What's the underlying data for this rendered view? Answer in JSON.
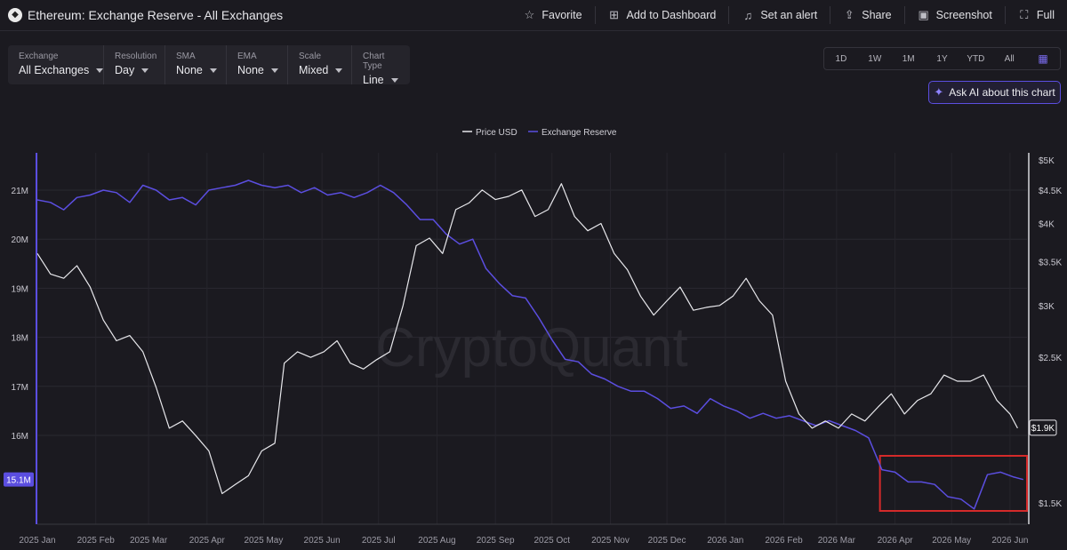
{
  "header": {
    "title": "Ethereum: Exchange Reserve - All Exchanges",
    "logo_icon": "ethereum-logo-icon",
    "actions": [
      {
        "label": "Favorite",
        "icon": "star-icon"
      },
      {
        "label": "Add to Dashboard",
        "icon": "add-dashboard-icon"
      },
      {
        "label": "Set an alert",
        "icon": "bell-icon"
      },
      {
        "label": "Share",
        "icon": "share-icon"
      },
      {
        "label": "Screenshot",
        "icon": "camera-icon"
      },
      {
        "label": "Full",
        "icon": "fullscreen-icon"
      }
    ]
  },
  "controls": [
    {
      "label": "Exchange",
      "value": "All Exchanges"
    },
    {
      "label": "Resolution",
      "value": "Day"
    },
    {
      "label": "SMA",
      "value": "None"
    },
    {
      "label": "EMA",
      "value": "None"
    },
    {
      "label": "Scale",
      "value": "Mixed"
    },
    {
      "label": "Chart Type",
      "value": "Line"
    }
  ],
  "ranges": [
    "1D",
    "1W",
    "1M",
    "1Y",
    "YTD",
    "All"
  ],
  "calendar_icon": "calendar-icon",
  "ask_ai": {
    "label": "Ask AI about this chart",
    "icon": "sparkle-icon"
  },
  "watermark": "CryptoQuant",
  "colors": {
    "background": "#1b1a20",
    "price": "#e8e8ec",
    "reserve": "#5b4ee0",
    "highlight_box": "#d42a2a"
  },
  "chart_data": {
    "type": "line",
    "legend": [
      "Price USD",
      "Exchange Reserve"
    ],
    "legend_position": "top-center",
    "x_ticks": [
      "2025 Jan",
      "2025 Feb",
      "2025 Mar",
      "2025 Apr",
      "2025 May",
      "2025 Jun",
      "2025 Jul",
      "2025 Aug",
      "2025 Sep",
      "2025 Oct",
      "2025 Nov",
      "2025 Dec",
      "2026 Jan",
      "2026 Feb",
      "2026 Mar",
      "2026 Apr",
      "2026 May",
      "2026 Jun"
    ],
    "left_axis": {
      "label": "Exchange Reserve",
      "ticks": [
        "21M",
        "20M",
        "19M",
        "18M",
        "17M",
        "16M"
      ],
      "current_value_label": "15.1M"
    },
    "right_axis": {
      "label": "Price USD",
      "scale": "log",
      "ticks": [
        "$5K",
        "$4.5K",
        "$4K",
        "$3.5K",
        "$3K",
        "$2.5K",
        "$1.5K"
      ],
      "current_value_label": "$1.9K"
    },
    "grid": true,
    "series": [
      {
        "name": "Price USD",
        "points": [
          [
            "2025-01-01",
            3600
          ],
          [
            "2025-01-08",
            3350
          ],
          [
            "2025-01-15",
            3300
          ],
          [
            "2025-01-22",
            3450
          ],
          [
            "2025-01-29",
            3200
          ],
          [
            "2025-02-05",
            2850
          ],
          [
            "2025-02-12",
            2650
          ],
          [
            "2025-02-19",
            2700
          ],
          [
            "2025-02-26",
            2550
          ],
          [
            "2025-03-05",
            2250
          ],
          [
            "2025-03-12",
            1950
          ],
          [
            "2025-03-19",
            2000
          ],
          [
            "2025-03-26",
            1900
          ],
          [
            "2025-04-02",
            1800
          ],
          [
            "2025-04-09",
            1550
          ],
          [
            "2025-04-16",
            1600
          ],
          [
            "2025-04-23",
            1650
          ],
          [
            "2025-04-30",
            1800
          ],
          [
            "2025-05-07",
            1850
          ],
          [
            "2025-05-12",
            2450
          ],
          [
            "2025-05-19",
            2550
          ],
          [
            "2025-05-26",
            2500
          ],
          [
            "2025-06-02",
            2550
          ],
          [
            "2025-06-09",
            2650
          ],
          [
            "2025-06-16",
            2450
          ],
          [
            "2025-06-23",
            2400
          ],
          [
            "2025-06-30",
            2480
          ],
          [
            "2025-07-07",
            2550
          ],
          [
            "2025-07-14",
            3000
          ],
          [
            "2025-07-21",
            3700
          ],
          [
            "2025-07-28",
            3800
          ],
          [
            "2025-08-04",
            3600
          ],
          [
            "2025-08-11",
            4200
          ],
          [
            "2025-08-18",
            4300
          ],
          [
            "2025-08-25",
            4500
          ],
          [
            "2025-09-01",
            4350
          ],
          [
            "2025-09-08",
            4400
          ],
          [
            "2025-09-15",
            4500
          ],
          [
            "2025-09-22",
            4100
          ],
          [
            "2025-09-29",
            4200
          ],
          [
            "2025-10-06",
            4600
          ],
          [
            "2025-10-13",
            4100
          ],
          [
            "2025-10-20",
            3900
          ],
          [
            "2025-10-27",
            4000
          ],
          [
            "2025-11-03",
            3600
          ],
          [
            "2025-11-10",
            3400
          ],
          [
            "2025-11-17",
            3100
          ],
          [
            "2025-11-24",
            2900
          ],
          [
            "2025-12-01",
            3050
          ],
          [
            "2025-12-08",
            3200
          ],
          [
            "2025-12-15",
            2950
          ],
          [
            "2025-12-22",
            2980
          ],
          [
            "2025-12-29",
            3000
          ],
          [
            "2026-01-05",
            3100
          ],
          [
            "2026-01-12",
            3300
          ],
          [
            "2026-01-19",
            3050
          ],
          [
            "2026-01-26",
            2900
          ],
          [
            "2026-02-02",
            2300
          ],
          [
            "2026-02-09",
            2050
          ],
          [
            "2026-02-16",
            1950
          ],
          [
            "2026-02-23",
            2000
          ],
          [
            "2026-03-02",
            1950
          ],
          [
            "2026-03-09",
            2050
          ],
          [
            "2026-03-16",
            2000
          ],
          [
            "2026-03-23",
            2100
          ],
          [
            "2026-03-30",
            2200
          ],
          [
            "2026-04-06",
            2050
          ],
          [
            "2026-04-13",
            2150
          ],
          [
            "2026-04-20",
            2200
          ],
          [
            "2026-04-27",
            2350
          ],
          [
            "2026-05-04",
            2300
          ],
          [
            "2026-05-11",
            2300
          ],
          [
            "2026-05-18",
            2350
          ],
          [
            "2026-05-25",
            2150
          ],
          [
            "2026-06-01",
            2050
          ],
          [
            "2026-06-05",
            1950
          ]
        ]
      },
      {
        "name": "Exchange Reserve",
        "points": [
          [
            "2025-01-01",
            20.8
          ],
          [
            "2025-01-08",
            20.75
          ],
          [
            "2025-01-15",
            20.6
          ],
          [
            "2025-01-22",
            20.85
          ],
          [
            "2025-01-29",
            20.9
          ],
          [
            "2025-02-05",
            21.0
          ],
          [
            "2025-02-12",
            20.95
          ],
          [
            "2025-02-19",
            20.75
          ],
          [
            "2025-02-26",
            21.1
          ],
          [
            "2025-03-05",
            21.0
          ],
          [
            "2025-03-12",
            20.8
          ],
          [
            "2025-03-19",
            20.85
          ],
          [
            "2025-03-26",
            20.7
          ],
          [
            "2025-04-02",
            21.0
          ],
          [
            "2025-04-09",
            21.05
          ],
          [
            "2025-04-16",
            21.1
          ],
          [
            "2025-04-23",
            21.2
          ],
          [
            "2025-04-30",
            21.1
          ],
          [
            "2025-05-07",
            21.05
          ],
          [
            "2025-05-14",
            21.1
          ],
          [
            "2025-05-21",
            20.95
          ],
          [
            "2025-05-28",
            21.05
          ],
          [
            "2025-06-04",
            20.9
          ],
          [
            "2025-06-11",
            20.95
          ],
          [
            "2025-06-18",
            20.85
          ],
          [
            "2025-06-25",
            20.95
          ],
          [
            "2025-07-02",
            21.1
          ],
          [
            "2025-07-09",
            20.95
          ],
          [
            "2025-07-16",
            20.7
          ],
          [
            "2025-07-23",
            20.4
          ],
          [
            "2025-07-30",
            20.4
          ],
          [
            "2025-08-06",
            20.1
          ],
          [
            "2025-08-13",
            19.9
          ],
          [
            "2025-08-20",
            20.0
          ],
          [
            "2025-08-27",
            19.4
          ],
          [
            "2025-09-03",
            19.1
          ],
          [
            "2025-09-10",
            18.85
          ],
          [
            "2025-09-17",
            18.8
          ],
          [
            "2025-09-24",
            18.4
          ],
          [
            "2025-10-01",
            17.95
          ],
          [
            "2025-10-08",
            17.55
          ],
          [
            "2025-10-15",
            17.5
          ],
          [
            "2025-10-22",
            17.25
          ],
          [
            "2025-10-29",
            17.15
          ],
          [
            "2025-11-05",
            17.0
          ],
          [
            "2025-11-12",
            16.9
          ],
          [
            "2025-11-19",
            16.9
          ],
          [
            "2025-11-26",
            16.75
          ],
          [
            "2025-12-03",
            16.55
          ],
          [
            "2025-12-10",
            16.6
          ],
          [
            "2025-12-17",
            16.45
          ],
          [
            "2025-12-24",
            16.75
          ],
          [
            "2025-12-31",
            16.6
          ],
          [
            "2026-01-07",
            16.5
          ],
          [
            "2026-01-14",
            16.35
          ],
          [
            "2026-01-21",
            16.45
          ],
          [
            "2026-01-28",
            16.35
          ],
          [
            "2026-02-04",
            16.4
          ],
          [
            "2026-02-11",
            16.3
          ],
          [
            "2026-02-18",
            16.2
          ],
          [
            "2026-02-25",
            16.3
          ],
          [
            "2026-03-04",
            16.2
          ],
          [
            "2026-03-11",
            16.1
          ],
          [
            "2026-03-18",
            15.95
          ],
          [
            "2026-03-25",
            15.3
          ],
          [
            "2026-04-01",
            15.25
          ],
          [
            "2026-04-08",
            15.05
          ],
          [
            "2026-04-15",
            15.05
          ],
          [
            "2026-04-22",
            15.0
          ],
          [
            "2026-04-29",
            14.75
          ],
          [
            "2026-05-06",
            14.7
          ],
          [
            "2026-05-13",
            14.5
          ],
          [
            "2026-05-20",
            15.2
          ],
          [
            "2026-05-27",
            15.25
          ],
          [
            "2026-06-03",
            15.15
          ],
          [
            "2026-06-08",
            15.1
          ]
        ]
      }
    ],
    "highlight_box": {
      "from": "2026-03-24",
      "to": "2026-06-10",
      "label": ""
    }
  }
}
